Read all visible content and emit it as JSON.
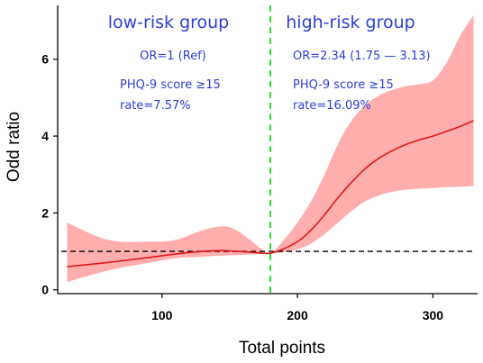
{
  "chart_data": {
    "type": "line",
    "title": "",
    "xlabel": "Total points",
    "ylabel": "Odd ratio",
    "xlim": [
      23,
      333
    ],
    "ylim": [
      -0.1,
      7.4
    ],
    "x_ticks": [
      100,
      200,
      300
    ],
    "y_ticks": [
      0,
      2,
      4,
      6
    ],
    "colors": {
      "line": "#e01818",
      "band": "#ff9a9a",
      "cutoff": "#1fdc1f",
      "reference": "#000000",
      "annotation": "#2b3fd6"
    },
    "cutoff_x": 180,
    "reference_y": 1,
    "series": [
      {
        "x": [
          30,
          60,
          90,
          110,
          130,
          145,
          155,
          165,
          172,
          180,
          190,
          200,
          210,
          220,
          230,
          240,
          250,
          260,
          270,
          280,
          290,
          300,
          310,
          320,
          330
        ],
        "values": [
          0.6,
          0.71,
          0.84,
          0.93,
          1.0,
          1.02,
          1.0,
          0.98,
          0.96,
          0.95,
          1.07,
          1.25,
          1.55,
          1.95,
          2.4,
          2.8,
          3.15,
          3.42,
          3.62,
          3.78,
          3.9,
          4.0,
          4.12,
          4.25,
          4.4
        ],
        "lower": [
          0.2,
          0.5,
          0.7,
          0.82,
          0.86,
          0.89,
          0.9,
          0.92,
          0.93,
          0.95,
          0.98,
          1.05,
          1.2,
          1.45,
          1.75,
          2.05,
          2.3,
          2.45,
          2.55,
          2.6,
          2.63,
          2.65,
          2.67,
          2.68,
          2.7
        ],
        "upper": [
          1.75,
          1.3,
          1.25,
          1.3,
          1.55,
          1.65,
          1.55,
          1.3,
          1.1,
          0.95,
          1.3,
          1.75,
          2.3,
          3.0,
          3.8,
          4.4,
          4.8,
          5.05,
          5.2,
          5.3,
          5.35,
          5.45,
          5.9,
          6.6,
          7.15
        ]
      }
    ],
    "annotations": {
      "low_group": {
        "title": "low-risk group",
        "or": "OR=1 (Ref)",
        "phq": "PHQ-9 score ≥15",
        "rate": "rate=7.57%"
      },
      "high_group": {
        "title": "high-risk group",
        "or": "OR=2.34 (1.75 — 3.13)",
        "phq": "PHQ-9 score ≥15",
        "rate": "rate=16.09%"
      }
    }
  }
}
